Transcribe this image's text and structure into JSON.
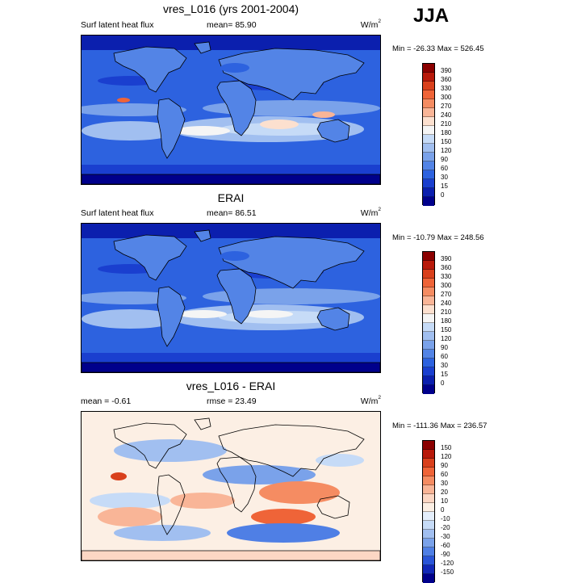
{
  "season": "JJA",
  "panels": [
    {
      "title": "vres_L016 (yrs 2001-2004)",
      "left_label": "Surf latent heat flux",
      "stat_label": "mean=  85.90",
      "units_base": "W/m",
      "units_exp": "2",
      "minmax": "Min = -26.33 Max = 526.45",
      "colorbar_levels": [
        "390",
        "360",
        "330",
        "300",
        "270",
        "240",
        "210",
        "180",
        "150",
        "120",
        "90",
        "60",
        "30",
        "15",
        "0"
      ],
      "colorbar_colors": [
        "#8b0000",
        "#b8190a",
        "#d9401c",
        "#ef6438",
        "#f58c62",
        "#f9b597",
        "#fce0cf",
        "#f5f5f5",
        "#c6dbf7",
        "#a1bff0",
        "#7aa2ea",
        "#5384e6",
        "#2d62df",
        "#1a3fcf",
        "#0b1fae",
        "#00008b"
      ],
      "map_style": "abs"
    },
    {
      "title": "ERAI",
      "left_label": "Surf latent heat flux",
      "stat_label": "mean=  86.51",
      "units_base": "W/m",
      "units_exp": "2",
      "minmax": "Min = -10.79 Max = 248.56",
      "colorbar_levels": [
        "390",
        "360",
        "330",
        "300",
        "270",
        "240",
        "210",
        "180",
        "150",
        "120",
        "90",
        "60",
        "30",
        "15",
        "0"
      ],
      "colorbar_colors": [
        "#8b0000",
        "#b8190a",
        "#d9401c",
        "#ef6438",
        "#f58c62",
        "#f9b597",
        "#fce0cf",
        "#f5f5f5",
        "#c6dbf7",
        "#a1bff0",
        "#7aa2ea",
        "#5384e6",
        "#2d62df",
        "#1a3fcf",
        "#0b1fae",
        "#00008b"
      ],
      "map_style": "abs"
    },
    {
      "title": "vres_L016 - ERAI",
      "left_label": "mean =  -0.61",
      "stat_label": "rmse =  23.49",
      "units_base": "W/m",
      "units_exp": "2",
      "minmax": "Min = -111.36 Max = 236.57",
      "colorbar_levels": [
        "150",
        "120",
        "90",
        "60",
        "30",
        "20",
        "10",
        "0",
        "-10",
        "-20",
        "-30",
        "-60",
        "-90",
        "-120",
        "-150"
      ],
      "colorbar_colors": [
        "#8b0000",
        "#b8190a",
        "#d9401c",
        "#ef6438",
        "#f58c62",
        "#f9b597",
        "#fcd7c4",
        "#fcefe4",
        "#e4eefb",
        "#c6dbf7",
        "#a1bff0",
        "#7aa2ea",
        "#4f7fe5",
        "#2a55d8",
        "#1228b8",
        "#00008b"
      ],
      "map_style": "diff"
    }
  ]
}
